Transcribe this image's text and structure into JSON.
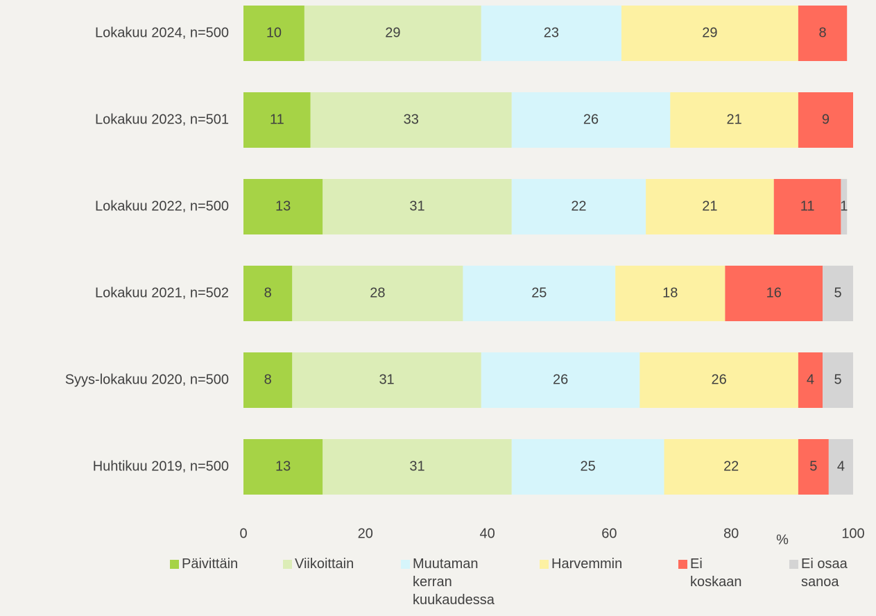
{
  "chart_data": {
    "type": "stacked-barh",
    "categories": [
      "Lokakuu 2024, n=500",
      "Lokakuu 2023, n=501",
      "Lokakuu 2022, n=500",
      "Lokakuu 2021, n=502",
      "Syys-lokakuu 2020, n=500",
      "Huhtikuu 2019, n=500"
    ],
    "series": [
      {
        "name": "Päivittäin",
        "color": "#a6d346",
        "values": [
          10,
          11,
          13,
          8,
          8,
          13
        ]
      },
      {
        "name": "Viikoittain",
        "color": "#dcedb7",
        "values": [
          29,
          33,
          31,
          28,
          31,
          31
        ]
      },
      {
        "name": "Muutaman kerran kuukaudessa",
        "color": "#d6f5fb",
        "values": [
          23,
          26,
          22,
          25,
          26,
          25
        ]
      },
      {
        "name": "Harvemmin",
        "color": "#fdf1a2",
        "values": [
          29,
          21,
          21,
          18,
          26,
          22
        ]
      },
      {
        "name": "Ei koskaan",
        "color": "#ff6b5b",
        "values": [
          8,
          9,
          11,
          16,
          4,
          5
        ]
      },
      {
        "name": "Ei osaa sanoa",
        "color": "#d4d4d4",
        "values": [
          null,
          null,
          1,
          5,
          5,
          4
        ]
      }
    ],
    "xlabel": "%",
    "xlim": [
      0,
      100
    ],
    "xticks": [
      0,
      20,
      40,
      60,
      80,
      100
    ],
    "legend": "bottom"
  }
}
